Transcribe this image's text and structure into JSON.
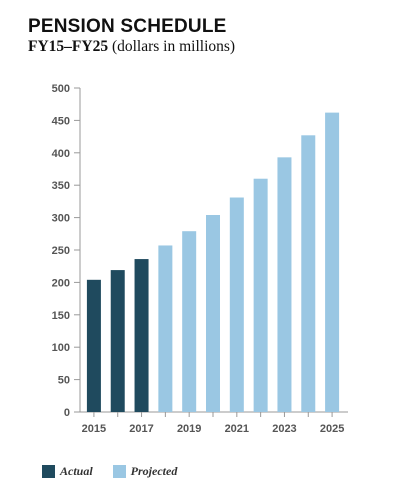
{
  "title": "PENSION SCHEDULE",
  "subtitle_bold": "FY15–FY25",
  "subtitle_rest": "(dollars in millions)",
  "legend": [
    {
      "label": "Actual",
      "color": "#1f4a5e"
    },
    {
      "label": "Projected",
      "color": "#9ac7e3"
    }
  ],
  "chart_data": {
    "type": "bar",
    "categories": [
      "2015",
      "2016",
      "2017",
      "2018",
      "2019",
      "2020",
      "2021",
      "2022",
      "2023",
      "2024",
      "2025"
    ],
    "series": [
      {
        "name": "Actual",
        "values": [
          204,
          219,
          236,
          null,
          null,
          null,
          null,
          null,
          null,
          null,
          null
        ],
        "color": "#1f4a5e"
      },
      {
        "name": "Projected",
        "values": [
          null,
          null,
          null,
          257,
          279,
          304,
          331,
          360,
          393,
          427,
          462
        ],
        "color": "#9ac7e3"
      }
    ],
    "xticks": [
      "2015",
      "2017",
      "2019",
      "2021",
      "2023",
      "2025"
    ],
    "yticks": [
      0,
      50,
      100,
      150,
      200,
      250,
      300,
      350,
      400,
      450,
      500
    ],
    "ylim": [
      0,
      500
    ],
    "title": "PENSION SCHEDULE",
    "subtitle": "FY15–FY25 (dollars in millions)",
    "xlabel": "",
    "ylabel": "",
    "grid": false,
    "legend_position": "bottom-left"
  }
}
